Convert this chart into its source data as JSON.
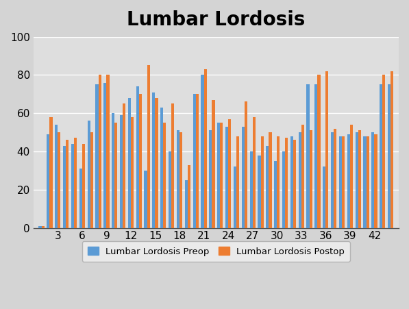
{
  "title": "Lumbar Lordosis",
  "title_fontsize": 20,
  "title_fontweight": "bold",
  "x_tick_labels": [
    "3",
    "6",
    "9",
    "12",
    "15",
    "18",
    "21",
    "24",
    "27",
    "30",
    "33",
    "36",
    "39",
    "42"
  ],
  "x_tick_values": [
    3,
    6,
    9,
    12,
    15,
    18,
    21,
    24,
    27,
    30,
    33,
    36,
    39,
    42
  ],
  "preop": [
    1,
    49,
    54,
    43,
    44,
    31,
    56,
    75,
    76,
    60,
    59,
    68,
    74,
    30,
    71,
    63,
    40,
    51,
    25,
    70,
    80,
    51,
    55,
    53,
    32,
    53,
    40,
    38,
    43,
    35,
    40,
    48,
    50,
    75,
    75,
    32,
    50,
    48,
    49,
    50,
    48,
    50,
    75,
    75
  ],
  "postop": [
    1,
    58,
    50,
    46,
    47,
    44,
    50,
    80,
    80,
    55,
    65,
    58,
    70,
    85,
    68,
    55,
    65,
    50,
    33,
    70,
    83,
    67,
    55,
    57,
    48,
    66,
    58,
    48,
    50,
    48,
    47,
    46,
    54,
    51,
    80,
    82,
    52,
    48,
    54,
    51,
    48,
    49,
    80,
    82
  ],
  "bar_width": 0.35,
  "preop_color": "#5B9BD5",
  "postop_color": "#ED7D31",
  "ylim": [
    0,
    100
  ],
  "yticks": [
    0,
    20,
    40,
    60,
    80,
    100
  ],
  "legend_preop": "Lumbar Lordosis Preop",
  "legend_postop": "Lumbar Lordosis Postop",
  "bg_color_top": "#E8E8E8",
  "bg_color_bottom": "#C8C8C8",
  "plot_bg_color": "#DEDEDE",
  "grid_color": "#FFFFFF",
  "legend_bg": "#F0F0F0"
}
